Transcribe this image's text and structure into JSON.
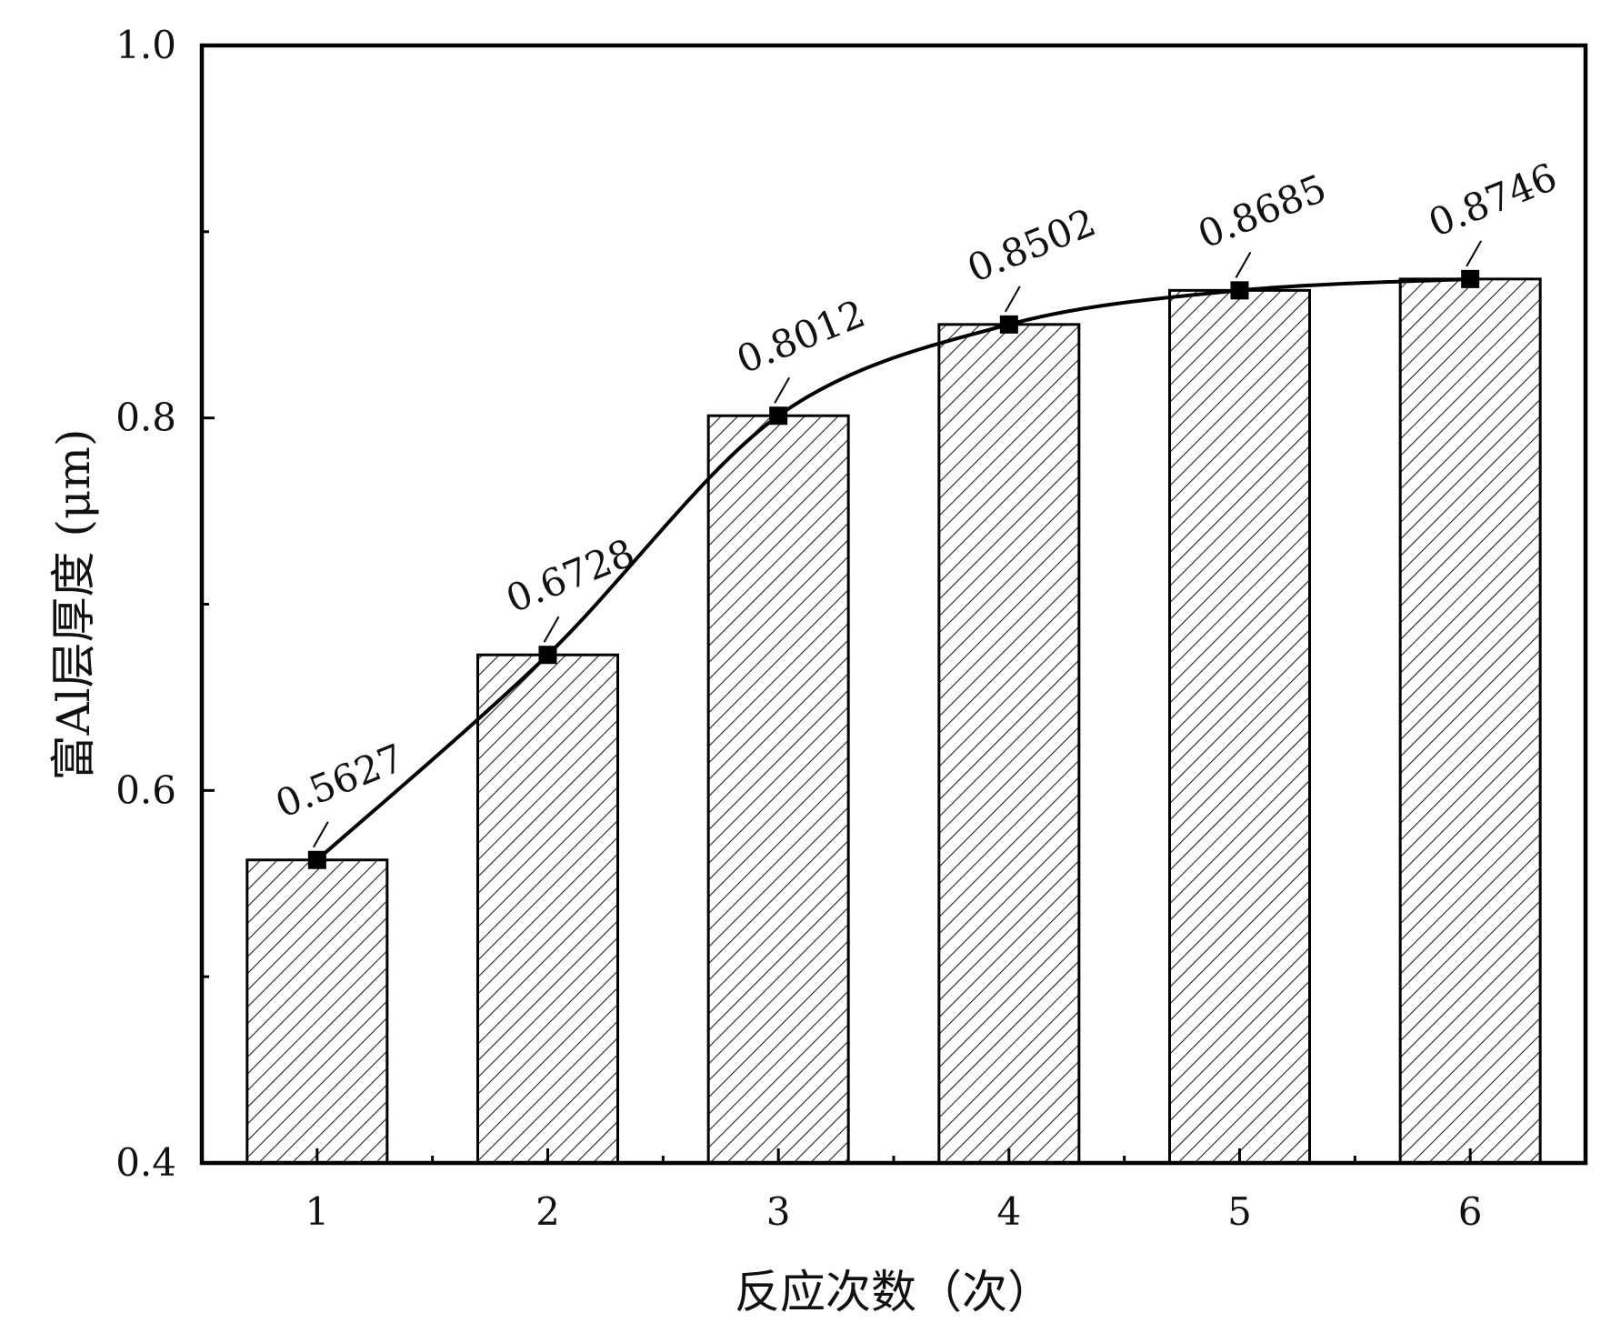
{
  "chart_data": {
    "type": "bar",
    "categories": [
      "1",
      "2",
      "3",
      "4",
      "5",
      "6"
    ],
    "series": [
      {
        "values": [
          0.5627,
          0.6728,
          0.8012,
          0.8502,
          0.8685,
          0.8746
        ],
        "render": "bar",
        "pattern": "diagonal-hatch"
      },
      {
        "values": [
          0.5627,
          0.6728,
          0.8012,
          0.8502,
          0.8685,
          0.8746
        ],
        "render": "line",
        "marker": "square"
      }
    ],
    "data_labels": [
      "0.5627",
      "0.6728",
      "0.8012",
      "0.8502",
      "0.8685",
      "0.8746"
    ],
    "title": "",
    "xlabel": "反应次数（次）",
    "ylabel": "富Al层厚度 (μm)",
    "ylim": [
      0.4,
      1.0
    ],
    "y_ticks": [
      "0.4",
      "0.6",
      "0.8",
      "1.0"
    ],
    "y_minor_ticks": [
      0.5,
      0.7,
      0.9
    ],
    "grid": false,
    "colors": {
      "bar_fill": "#ffffff",
      "hatch": "#222222",
      "line": "#000000",
      "marker": "#000000",
      "axis": "#000000"
    }
  }
}
